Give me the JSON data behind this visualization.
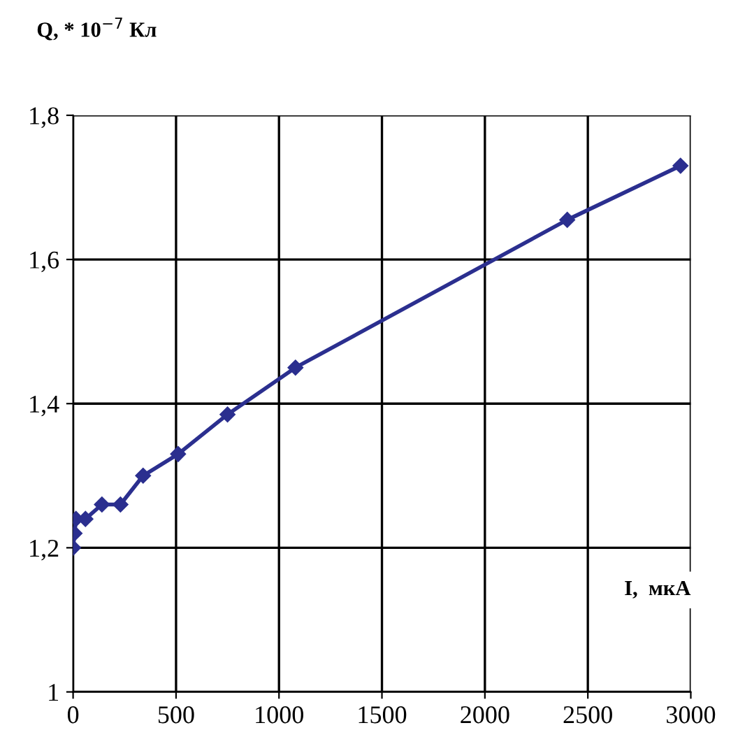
{
  "chart_data": {
    "type": "line",
    "xlabel": "I,  мкА",
    "ylabel": "Q, * 10$^{−7}$ Кл",
    "x": [
      0,
      7,
      14,
      60,
      140,
      230,
      340,
      510,
      750,
      1080,
      2400,
      2950
    ],
    "series": [
      {
        "color": "#2b2f8f",
        "values": [
          1.2,
          1.22,
          1.24,
          1.24,
          1.26,
          1.26,
          1.3,
          1.33,
          1.385,
          1.45,
          1.655,
          1.73
        ]
      }
    ],
    "xlim": [
      0,
      3000
    ],
    "xticks": [
      0,
      500,
      1000,
      1500,
      2000,
      2500,
      3000
    ],
    "ylim": [
      1,
      1.8
    ],
    "yticks": [
      {
        "value": 1,
        "label": "1"
      },
      {
        "value": 1.2,
        "label": "1,2"
      },
      {
        "value": 1.4,
        "label": "1,4"
      },
      {
        "value": 1.6,
        "label": "1,6"
      },
      {
        "value": 1.8,
        "label": "1,8"
      }
    ],
    "grid": true,
    "marker": "diamond",
    "line_style": "solid"
  }
}
